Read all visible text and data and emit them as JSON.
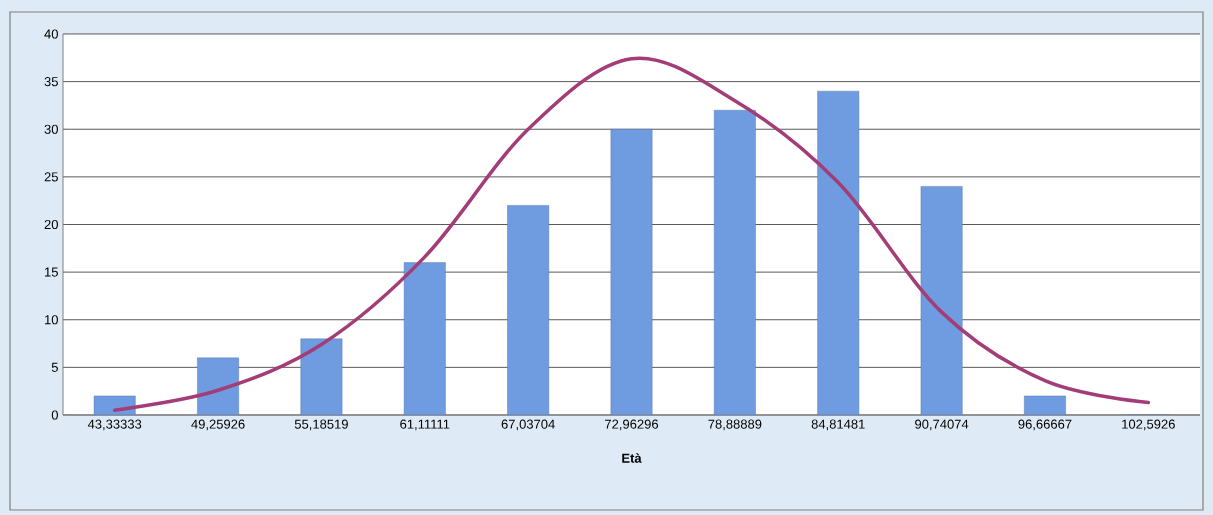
{
  "chart_data": {
    "type": "bar",
    "xlabel": "Età",
    "categories": [
      "43,33333",
      "49,25926",
      "55,18519",
      "61,11111",
      "67,03704",
      "72,96296",
      "78,88889",
      "84,81481",
      "90,74074",
      "96,66667",
      "102,5926"
    ],
    "series": [
      {
        "color": "#6f9be0",
        "values": [
          2,
          6,
          8,
          16,
          22,
          30,
          32,
          34,
          24,
          2,
          0
        ]
      },
      {
        "type": "line",
        "color": "#a33d78",
        "values": [
          0.5,
          2.6,
          7.4,
          16.6,
          30,
          37.4,
          33,
          24.4,
          10.8,
          3.6,
          1.3
        ]
      }
    ],
    "ylim": [
      0,
      40
    ],
    "yticks": [
      0,
      5,
      10,
      15,
      20,
      25,
      30,
      35,
      40
    ],
    "grid": "y"
  }
}
